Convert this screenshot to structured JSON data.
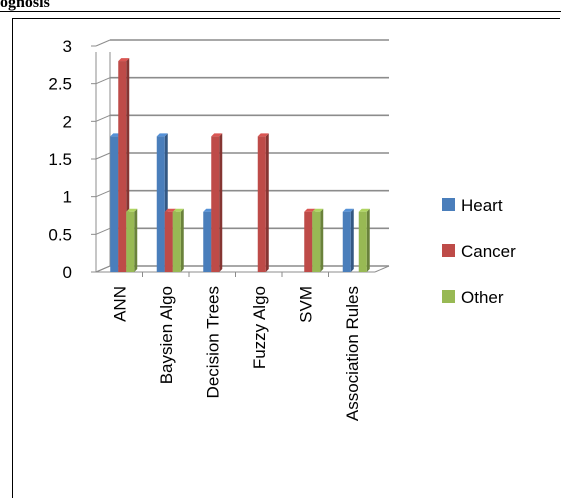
{
  "page": {
    "title": "ognosis"
  },
  "chart_data": {
    "type": "bar",
    "categories": [
      "ANN",
      "Baysien Algo",
      "Decision Trees",
      "Fuzzy Algo",
      "SVM",
      "Association Rules"
    ],
    "series": [
      {
        "name": "Heart",
        "color": "#4a7ebb",
        "values": [
          1.8,
          1.8,
          0.8,
          0,
          0,
          0.8
        ]
      },
      {
        "name": "Cancer",
        "color": "#be4b48",
        "values": [
          2.8,
          0.8,
          1.8,
          1.8,
          0.8,
          0
        ]
      },
      {
        "name": "Other",
        "color": "#98b954",
        "values": [
          0.8,
          0.8,
          0,
          0,
          0.8,
          0.8
        ]
      }
    ],
    "yticks": [
      "0",
      "0.5",
      "1",
      "1.5",
      "2",
      "2.5",
      "3"
    ],
    "ylim": [
      0,
      3
    ],
    "grid": true,
    "legend_position": "right",
    "style": "3d-clustered-column"
  }
}
